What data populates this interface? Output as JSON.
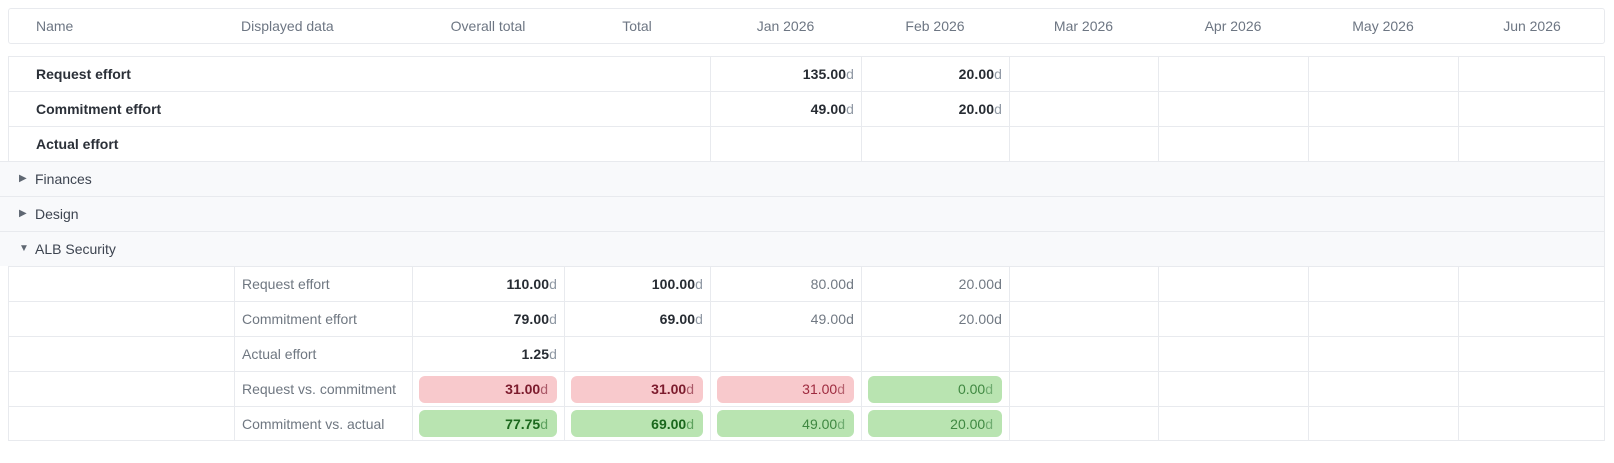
{
  "colors": {
    "line": "#e8eaee",
    "group_row_bg": "#f8f9fb",
    "header_text": "#6d7683",
    "badge_red_bg": "#f8c9cc",
    "badge_red_text": "#7c1b2d",
    "badge_green_bg": "#b9e4b1",
    "badge_green_text": "#1a671c"
  },
  "icons": {
    "collapsed": "▶",
    "expanded": "▼"
  },
  "table": {
    "columns": [
      {
        "key": "name",
        "label": "Name",
        "align": "left"
      },
      {
        "key": "displayed",
        "label": "Displayed data",
        "align": "left"
      },
      {
        "key": "overall",
        "label": "Overall total",
        "align": "center"
      },
      {
        "key": "total",
        "label": "Total",
        "align": "center"
      },
      {
        "key": "jan",
        "label": "Jan 2026",
        "align": "center"
      },
      {
        "key": "feb",
        "label": "Feb 2026",
        "align": "center"
      },
      {
        "key": "mar",
        "label": "Mar 2026",
        "align": "center"
      },
      {
        "key": "apr",
        "label": "Apr 2026",
        "align": "center"
      },
      {
        "key": "may",
        "label": "May 2026",
        "align": "center"
      },
      {
        "key": "jun",
        "label": "Jun 2026",
        "align": "center"
      }
    ],
    "value_columns": [
      "overall",
      "total",
      "jan",
      "feb",
      "mar",
      "apr",
      "may",
      "jun"
    ],
    "month_columns": [
      "jan",
      "feb",
      "mar",
      "apr",
      "may",
      "jun"
    ],
    "rows": [
      {
        "kind": "top",
        "label": "Request effort",
        "values": {
          "jan": {
            "num": "135.00",
            "unit": "d",
            "weight": "bold"
          },
          "feb": {
            "num": "20.00",
            "unit": "d",
            "weight": "bold"
          }
        }
      },
      {
        "kind": "top",
        "label": "Commitment effort",
        "values": {
          "jan": {
            "num": "49.00",
            "unit": "d",
            "weight": "bold"
          },
          "feb": {
            "num": "20.00",
            "unit": "d",
            "weight": "bold"
          }
        }
      },
      {
        "kind": "top",
        "label": "Actual effort",
        "values": {}
      },
      {
        "kind": "group",
        "label": "Finances",
        "expanded": false
      },
      {
        "kind": "group",
        "label": "Design",
        "expanded": false
      },
      {
        "kind": "group",
        "label": "ALB Security",
        "expanded": true
      },
      {
        "kind": "sub",
        "label": "Request effort",
        "values": {
          "overall": {
            "num": "110.00",
            "unit": "d",
            "weight": "bold"
          },
          "total": {
            "num": "100.00",
            "unit": "d",
            "weight": "bold"
          },
          "jan": {
            "num": "80.00",
            "unit": "d",
            "weight": "gray"
          },
          "feb": {
            "num": "20.00",
            "unit": "d",
            "weight": "gray"
          }
        }
      },
      {
        "kind": "sub",
        "label": "Commitment effort",
        "values": {
          "overall": {
            "num": "79.00",
            "unit": "d",
            "weight": "bold"
          },
          "total": {
            "num": "69.00",
            "unit": "d",
            "weight": "bold"
          },
          "jan": {
            "num": "49.00",
            "unit": "d",
            "weight": "gray"
          },
          "feb": {
            "num": "20.00",
            "unit": "d",
            "weight": "gray"
          }
        }
      },
      {
        "kind": "sub",
        "label": "Actual effort",
        "values": {
          "overall": {
            "num": "1.25",
            "unit": "d",
            "weight": "bold"
          }
        }
      },
      {
        "kind": "sub",
        "label": "Request vs. commitment",
        "values": {
          "overall": {
            "num": "31.00",
            "unit": "d",
            "weight": "bold",
            "badge": "red"
          },
          "total": {
            "num": "31.00",
            "unit": "d",
            "weight": "bold",
            "badge": "red"
          },
          "jan": {
            "num": "31.00",
            "unit": "d",
            "weight": "plain",
            "badge": "red"
          },
          "feb": {
            "num": "0.00",
            "unit": "d",
            "weight": "plain",
            "badge": "green"
          }
        }
      },
      {
        "kind": "sub",
        "label": "Commitment vs. actual",
        "values": {
          "overall": {
            "num": "77.75",
            "unit": "d",
            "weight": "bold",
            "badge": "green"
          },
          "total": {
            "num": "69.00",
            "unit": "d",
            "weight": "bold",
            "badge": "green"
          },
          "jan": {
            "num": "49.00",
            "unit": "d",
            "weight": "plain",
            "badge": "green"
          },
          "feb": {
            "num": "20.00",
            "unit": "d",
            "weight": "plain",
            "badge": "green"
          }
        }
      }
    ]
  }
}
